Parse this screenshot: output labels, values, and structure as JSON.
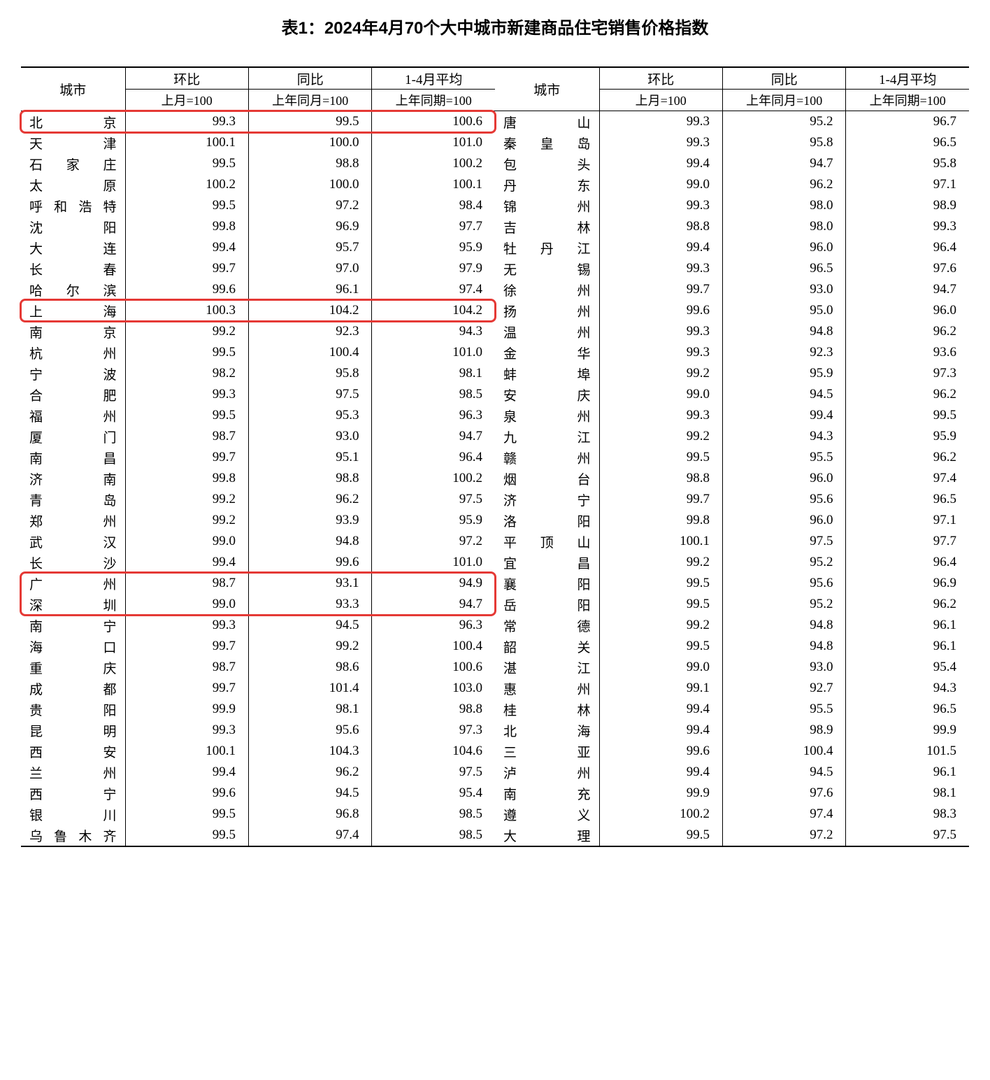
{
  "title": "表1：2024年4月70个大中城市新建商品住宅销售价格指数",
  "header": {
    "city": "城市",
    "mom": "环比",
    "mom_sub": "上月=100",
    "yoy": "同比",
    "yoy_sub": "上年同月=100",
    "avg": "1-4月平均",
    "avg_sub": "上年同期=100"
  },
  "highlight_color": "#e53935",
  "left": [
    {
      "city": "北　　京",
      "mom": "99.3",
      "yoy": "99.5",
      "avg": "100.6",
      "hl": true
    },
    {
      "city": "天　　津",
      "mom": "100.1",
      "yoy": "100.0",
      "avg": "101.0"
    },
    {
      "city": "石 家 庄",
      "mom": "99.5",
      "yoy": "98.8",
      "avg": "100.2"
    },
    {
      "city": "太　　原",
      "mom": "100.2",
      "yoy": "100.0",
      "avg": "100.1"
    },
    {
      "city": "呼和浩特",
      "mom": "99.5",
      "yoy": "97.2",
      "avg": "98.4"
    },
    {
      "city": "沈　　阳",
      "mom": "99.8",
      "yoy": "96.9",
      "avg": "97.7"
    },
    {
      "city": "大　　连",
      "mom": "99.4",
      "yoy": "95.7",
      "avg": "95.9"
    },
    {
      "city": "长　　春",
      "mom": "99.7",
      "yoy": "97.0",
      "avg": "97.9"
    },
    {
      "city": "哈 尔 滨",
      "mom": "99.6",
      "yoy": "96.1",
      "avg": "97.4"
    },
    {
      "city": "上　　海",
      "mom": "100.3",
      "yoy": "104.2",
      "avg": "104.2",
      "hl": true
    },
    {
      "city": "南　　京",
      "mom": "99.2",
      "yoy": "92.3",
      "avg": "94.3"
    },
    {
      "city": "杭　　州",
      "mom": "99.5",
      "yoy": "100.4",
      "avg": "101.0"
    },
    {
      "city": "宁　　波",
      "mom": "98.2",
      "yoy": "95.8",
      "avg": "98.1"
    },
    {
      "city": "合　　肥",
      "mom": "99.3",
      "yoy": "97.5",
      "avg": "98.5"
    },
    {
      "city": "福　　州",
      "mom": "99.5",
      "yoy": "95.3",
      "avg": "96.3"
    },
    {
      "city": "厦　　门",
      "mom": "98.7",
      "yoy": "93.0",
      "avg": "94.7"
    },
    {
      "city": "南　　昌",
      "mom": "99.7",
      "yoy": "95.1",
      "avg": "96.4"
    },
    {
      "city": "济　　南",
      "mom": "99.8",
      "yoy": "98.8",
      "avg": "100.2"
    },
    {
      "city": "青　　岛",
      "mom": "99.2",
      "yoy": "96.2",
      "avg": "97.5"
    },
    {
      "city": "郑　　州",
      "mom": "99.2",
      "yoy": "93.9",
      "avg": "95.9"
    },
    {
      "city": "武　　汉",
      "mom": "99.0",
      "yoy": "94.8",
      "avg": "97.2"
    },
    {
      "city": "长　　沙",
      "mom": "99.4",
      "yoy": "99.6",
      "avg": "101.0"
    },
    {
      "city": "广　　州",
      "mom": "98.7",
      "yoy": "93.1",
      "avg": "94.9",
      "hl": true
    },
    {
      "city": "深　　圳",
      "mom": "99.0",
      "yoy": "93.3",
      "avg": "94.7",
      "hl": true
    },
    {
      "city": "南　　宁",
      "mom": "99.3",
      "yoy": "94.5",
      "avg": "96.3"
    },
    {
      "city": "海　　口",
      "mom": "99.7",
      "yoy": "99.2",
      "avg": "100.4"
    },
    {
      "city": "重　　庆",
      "mom": "98.7",
      "yoy": "98.6",
      "avg": "100.6"
    },
    {
      "city": "成　　都",
      "mom": "99.7",
      "yoy": "101.4",
      "avg": "103.0"
    },
    {
      "city": "贵　　阳",
      "mom": "99.9",
      "yoy": "98.1",
      "avg": "98.8"
    },
    {
      "city": "昆　　明",
      "mom": "99.3",
      "yoy": "95.6",
      "avg": "97.3"
    },
    {
      "city": "西　　安",
      "mom": "100.1",
      "yoy": "104.3",
      "avg": "104.6"
    },
    {
      "city": "兰　　州",
      "mom": "99.4",
      "yoy": "96.2",
      "avg": "97.5"
    },
    {
      "city": "西　　宁",
      "mom": "99.6",
      "yoy": "94.5",
      "avg": "95.4"
    },
    {
      "city": "银　　川",
      "mom": "99.5",
      "yoy": "96.8",
      "avg": "98.5"
    },
    {
      "city": "乌鲁木齐",
      "mom": "99.5",
      "yoy": "97.4",
      "avg": "98.5"
    }
  ],
  "right": [
    {
      "city": "唐　　山",
      "mom": "99.3",
      "yoy": "95.2",
      "avg": "96.7"
    },
    {
      "city": "秦 皇 岛",
      "mom": "99.3",
      "yoy": "95.8",
      "avg": "96.5"
    },
    {
      "city": "包　　头",
      "mom": "99.4",
      "yoy": "94.7",
      "avg": "95.8"
    },
    {
      "city": "丹　　东",
      "mom": "99.0",
      "yoy": "96.2",
      "avg": "97.1"
    },
    {
      "city": "锦　　州",
      "mom": "99.3",
      "yoy": "98.0",
      "avg": "98.9"
    },
    {
      "city": "吉　　林",
      "mom": "98.8",
      "yoy": "98.0",
      "avg": "99.3"
    },
    {
      "city": "牡 丹 江",
      "mom": "99.4",
      "yoy": "96.0",
      "avg": "96.4"
    },
    {
      "city": "无　　锡",
      "mom": "99.3",
      "yoy": "96.5",
      "avg": "97.6"
    },
    {
      "city": "徐　　州",
      "mom": "99.7",
      "yoy": "93.0",
      "avg": "94.7"
    },
    {
      "city": "扬　　州",
      "mom": "99.6",
      "yoy": "95.0",
      "avg": "96.0"
    },
    {
      "city": "温　　州",
      "mom": "99.3",
      "yoy": "94.8",
      "avg": "96.2"
    },
    {
      "city": "金　　华",
      "mom": "99.3",
      "yoy": "92.3",
      "avg": "93.6"
    },
    {
      "city": "蚌　　埠",
      "mom": "99.2",
      "yoy": "95.9",
      "avg": "97.3"
    },
    {
      "city": "安　　庆",
      "mom": "99.0",
      "yoy": "94.5",
      "avg": "96.2"
    },
    {
      "city": "泉　　州",
      "mom": "99.3",
      "yoy": "99.4",
      "avg": "99.5"
    },
    {
      "city": "九　　江",
      "mom": "99.2",
      "yoy": "94.3",
      "avg": "95.9"
    },
    {
      "city": "赣　　州",
      "mom": "99.5",
      "yoy": "95.5",
      "avg": "96.2"
    },
    {
      "city": "烟　　台",
      "mom": "98.8",
      "yoy": "96.0",
      "avg": "97.4"
    },
    {
      "city": "济　　宁",
      "mom": "99.7",
      "yoy": "95.6",
      "avg": "96.5"
    },
    {
      "city": "洛　　阳",
      "mom": "99.8",
      "yoy": "96.0",
      "avg": "97.1"
    },
    {
      "city": "平 顶 山",
      "mom": "100.1",
      "yoy": "97.5",
      "avg": "97.7"
    },
    {
      "city": "宜　　昌",
      "mom": "99.2",
      "yoy": "95.2",
      "avg": "96.4"
    },
    {
      "city": "襄　　阳",
      "mom": "99.5",
      "yoy": "95.6",
      "avg": "96.9"
    },
    {
      "city": "岳　　阳",
      "mom": "99.5",
      "yoy": "95.2",
      "avg": "96.2"
    },
    {
      "city": "常　　德",
      "mom": "99.2",
      "yoy": "94.8",
      "avg": "96.1"
    },
    {
      "city": "韶　　关",
      "mom": "99.5",
      "yoy": "94.8",
      "avg": "96.1"
    },
    {
      "city": "湛　　江",
      "mom": "99.0",
      "yoy": "93.0",
      "avg": "95.4"
    },
    {
      "city": "惠　　州",
      "mom": "99.1",
      "yoy": "92.7",
      "avg": "94.3"
    },
    {
      "city": "桂　　林",
      "mom": "99.4",
      "yoy": "95.5",
      "avg": "96.5"
    },
    {
      "city": "北　　海",
      "mom": "99.4",
      "yoy": "98.9",
      "avg": "99.9"
    },
    {
      "city": "三　　亚",
      "mom": "99.6",
      "yoy": "100.4",
      "avg": "101.5"
    },
    {
      "city": "泸　　州",
      "mom": "99.4",
      "yoy": "94.5",
      "avg": "96.1"
    },
    {
      "city": "南　　充",
      "mom": "99.9",
      "yoy": "97.6",
      "avg": "98.1"
    },
    {
      "city": "遵　　义",
      "mom": "100.2",
      "yoy": "97.4",
      "avg": "98.3"
    },
    {
      "city": "大　　理",
      "mom": "99.5",
      "yoy": "97.2",
      "avg": "97.5"
    }
  ]
}
